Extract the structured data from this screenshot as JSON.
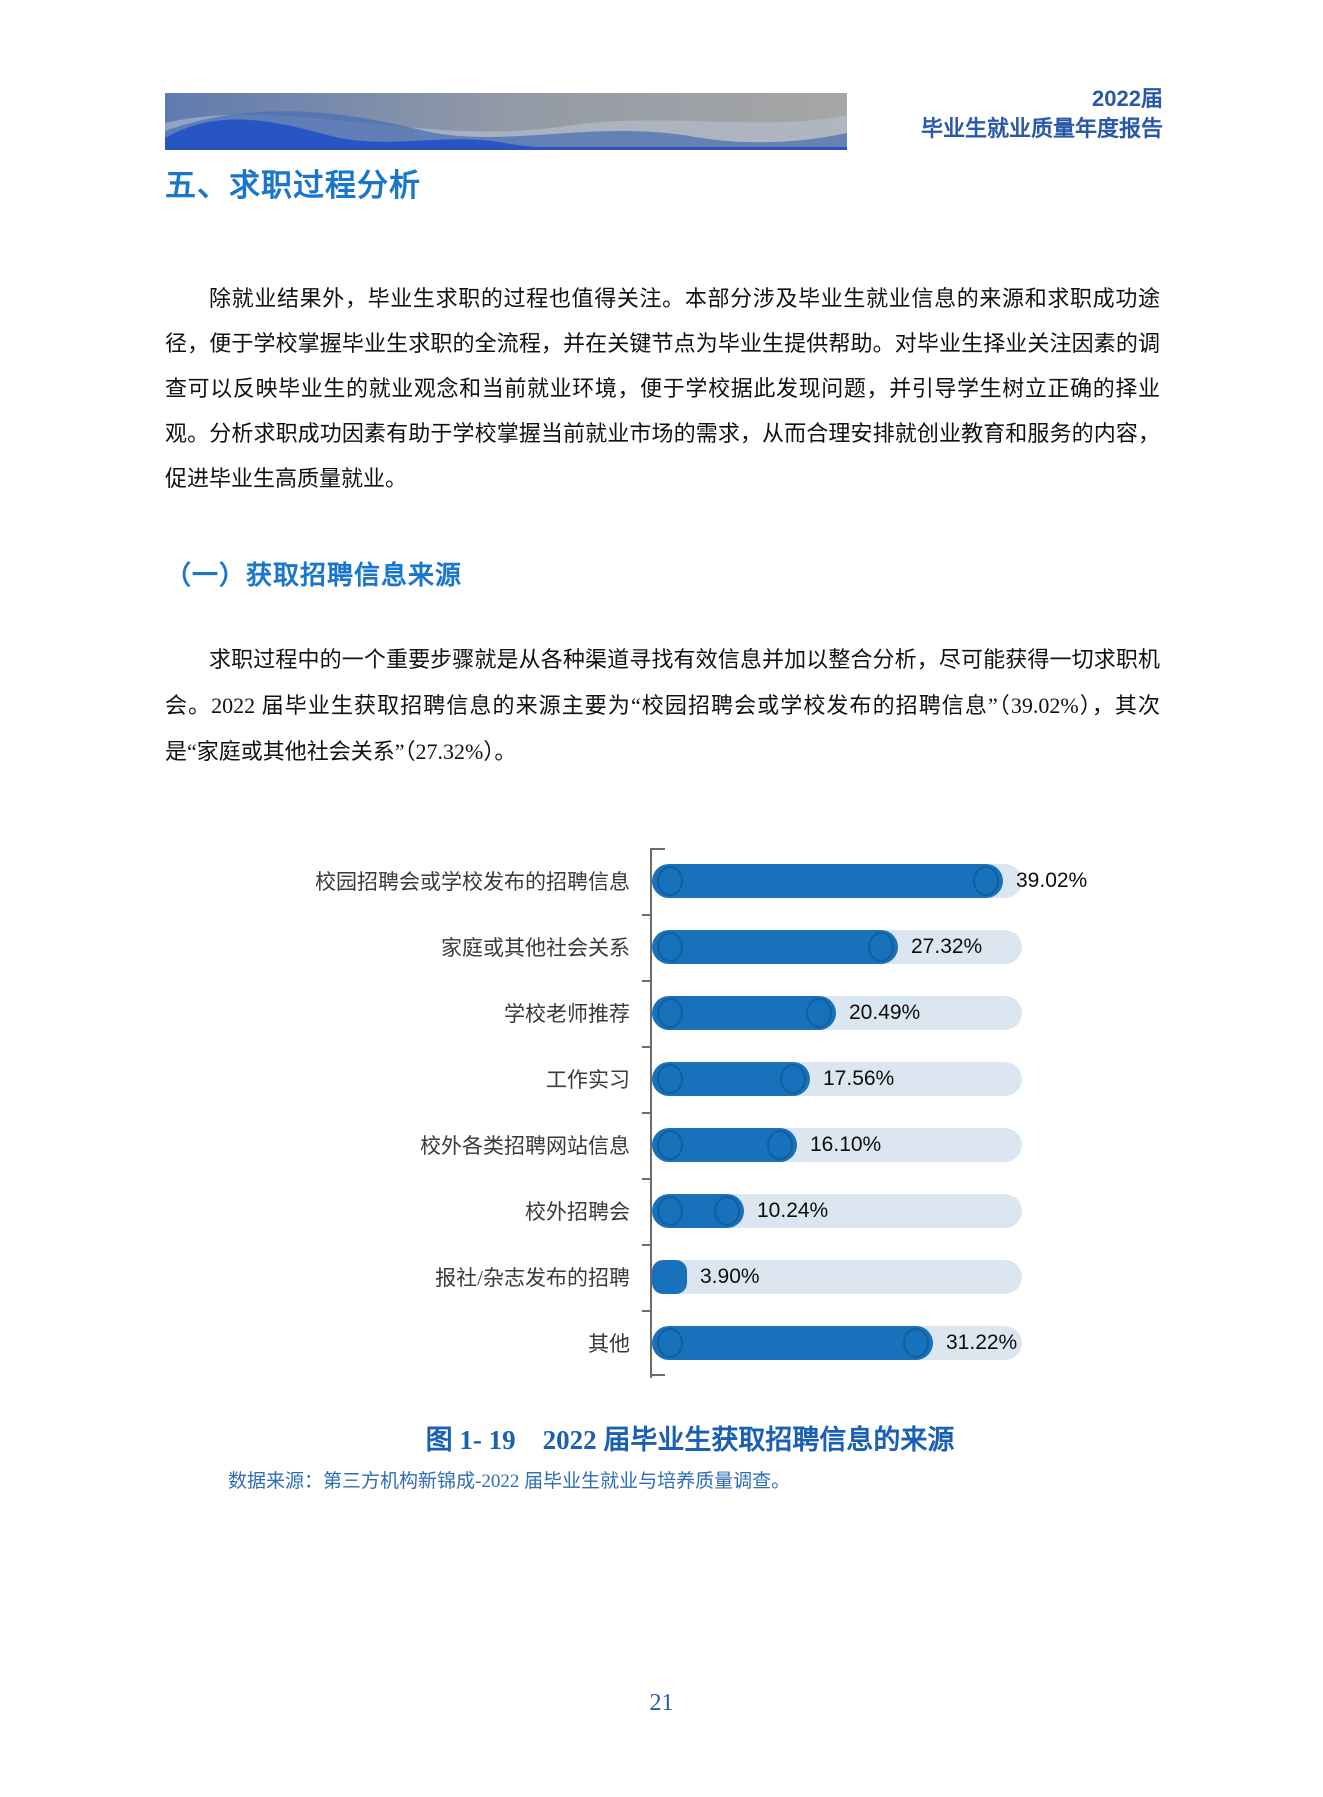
{
  "header": {
    "year": "2022届",
    "title": "毕业生就业质量年度报告"
  },
  "section_title": "五、求职过程分析",
  "paragraphs": {
    "p1": "除就业结果外，毕业生求职的过程也值得关注。本部分涉及毕业生就业信息的来源和求职成功途径，便于学校掌握毕业生求职的全流程，并在关键节点为毕业生提供帮助。对毕业生择业关注因素的调查可以反映毕业生的就业观念和当前就业环境，便于学校据此发现问题，并引导学生树立正确的择业观。分析求职成功因素有助于学校掌握当前就业市场的需求，从而合理安排就创业教育和服务的内容，促进毕业生高质量就业。",
    "p2": "求职过程中的一个重要步骤就是从各种渠道寻找有效信息并加以整合分析，尽可能获得一切求职机会。2022 届毕业生获取招聘信息的来源主要为“校园招聘会或学校发布的招聘信息”（39.02%），其次是“家庭或其他社会关系”（27.32%）。"
  },
  "subsection_title": "（一）获取招聘信息来源",
  "chart_data": {
    "type": "bar",
    "orientation": "horizontal",
    "categories": [
      "校园招聘会或学校发布的招聘信息",
      "家庭或其他社会关系",
      "学校老师推荐",
      "工作实习",
      "校外各类招聘网站信息",
      "校外招聘会",
      "报社/杂志发布的招聘",
      "其他"
    ],
    "values": [
      39.02,
      27.32,
      20.49,
      17.56,
      16.1,
      10.24,
      3.9,
      31.22
    ],
    "labels": [
      "39.02%",
      "27.32%",
      "20.49%",
      "17.56%",
      "16.10%",
      "10.24%",
      "3.90%",
      "31.22%"
    ],
    "title": "2022 届毕业生获取招聘信息的来源",
    "xlabel": "",
    "ylabel": "",
    "xlim": [
      0,
      41
    ],
    "grid": false,
    "legend": "none",
    "bar_color": "#1772BB",
    "track_color": "#DCE6F1"
  },
  "figure_caption": "图 1- 19　2022 届毕业生获取招聘信息的来源",
  "data_source": "数据来源：第三方机构新锦成-2022 届毕业生就业与培养质量调查。",
  "page_number": "21",
  "colors": {
    "heading_blue": "#1876CC",
    "header_text_blue": "#2A58A8",
    "caption_blue": "#1A60B2",
    "bar_blue": "#1772BB",
    "track_blue": "#DCE6F1"
  }
}
